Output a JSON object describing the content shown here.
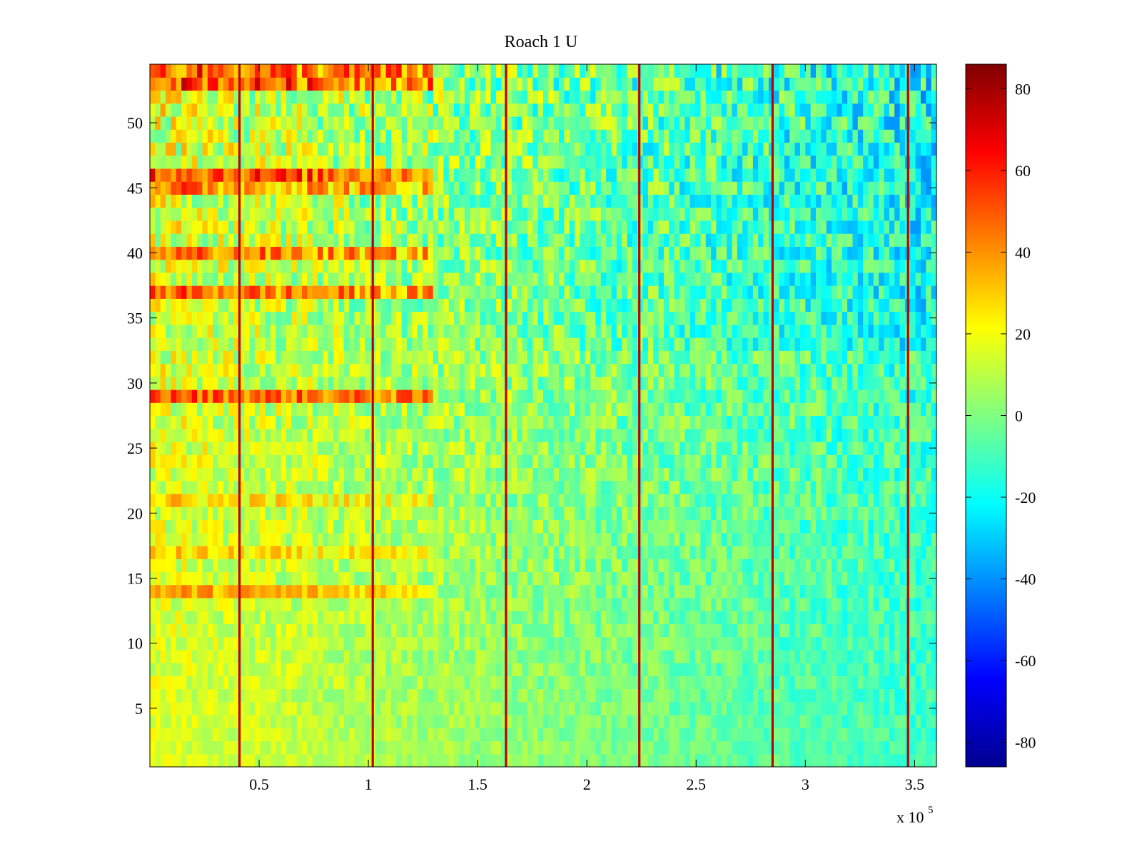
{
  "chart_data": {
    "type": "heatmap",
    "title": "Roach 1 U",
    "xlabel": "",
    "ylabel": "",
    "x_multiplier_label": "x 10",
    "x_multiplier_exponent": "5",
    "xlim": [
      0,
      360000
    ],
    "ylim": [
      0.5,
      54.5
    ],
    "rows": 54,
    "x_ticks": [
      {
        "value": 50000,
        "label": "0.5"
      },
      {
        "value": 100000,
        "label": "1"
      },
      {
        "value": 150000,
        "label": "1.5"
      },
      {
        "value": 200000,
        "label": "2"
      },
      {
        "value": 250000,
        "label": "2.5"
      },
      {
        "value": 300000,
        "label": "3"
      },
      {
        "value": 350000,
        "label": "3.5"
      }
    ],
    "y_ticks": [
      {
        "value": 5,
        "label": "5"
      },
      {
        "value": 10,
        "label": "10"
      },
      {
        "value": 15,
        "label": "15"
      },
      {
        "value": 20,
        "label": "20"
      },
      {
        "value": 25,
        "label": "25"
      },
      {
        "value": 30,
        "label": "30"
      },
      {
        "value": 35,
        "label": "35"
      },
      {
        "value": 40,
        "label": "40"
      },
      {
        "value": 45,
        "label": "45"
      },
      {
        "value": 50,
        "label": "50"
      }
    ],
    "colorbar": {
      "colormap": "jet",
      "clim": [
        -86,
        86
      ],
      "ticks": [
        {
          "value": 80,
          "label": "80"
        },
        {
          "value": 60,
          "label": "60"
        },
        {
          "value": 40,
          "label": "40"
        },
        {
          "value": 20,
          "label": "20"
        },
        {
          "value": 0,
          "label": "0"
        },
        {
          "value": -20,
          "label": "-20"
        },
        {
          "value": -40,
          "label": "-40"
        },
        {
          "value": -60,
          "label": "-60"
        },
        {
          "value": -80,
          "label": "-80"
        }
      ]
    },
    "vertical_stripes_x": [
      41000,
      102000,
      163000,
      224000,
      285000,
      347000
    ],
    "stripe_value": 75,
    "grid": false
  }
}
